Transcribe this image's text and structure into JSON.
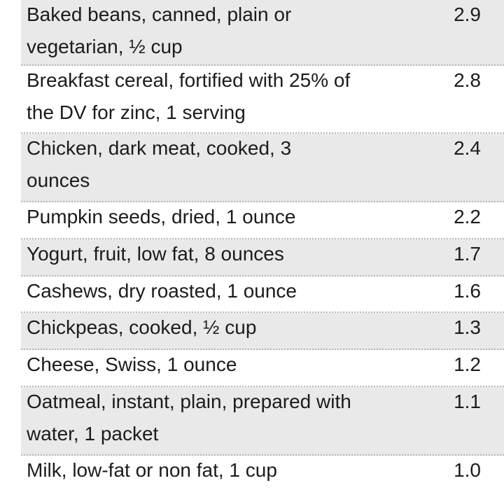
{
  "rows": [
    {
      "food": "Baked beans, canned, plain or vegetarian, ½ cup",
      "value": "2.9"
    },
    {
      "food": "Breakfast cereal, fortified with 25% of the DV for zinc, 1 serving",
      "value": "2.8"
    },
    {
      "food": "Chicken, dark meat, cooked, 3 ounces",
      "value": "2.4"
    },
    {
      "food": "Pumpkin seeds, dried, 1 ounce",
      "value": "2.2"
    },
    {
      "food": "Yogurt, fruit, low fat, 8 ounces",
      "value": "1.7"
    },
    {
      "food": "Cashews, dry roasted, 1 ounce",
      "value": "1.6"
    },
    {
      "food": "Chickpeas, cooked, ½ cup",
      "value": "1.3"
    },
    {
      "food": "Cheese, Swiss, 1 ounce",
      "value": "1.2"
    },
    {
      "food": "Oatmeal, instant, plain, prepared with water, 1 packet",
      "value": "1.1"
    },
    {
      "food": "Milk, low-fat or non fat, 1 cup",
      "value": "1.0"
    }
  ],
  "colors": {
    "shaded_row": "#e9e9e9",
    "white_row": "#ffffff",
    "divider": "#b4b4b4",
    "text": "#1c1c1c"
  }
}
